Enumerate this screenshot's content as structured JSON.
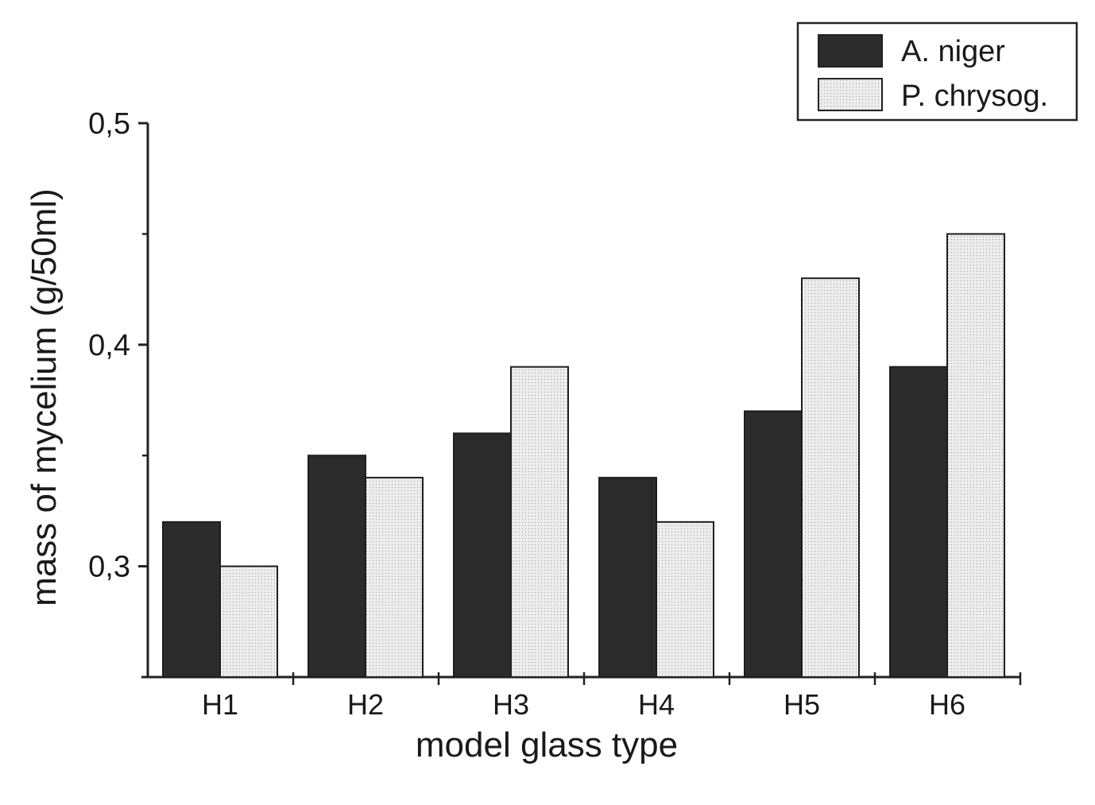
{
  "chart_data": {
    "type": "bar",
    "xlabel": "model glass type",
    "ylabel": "mass of mycelium (g/50ml)",
    "categories": [
      "H1",
      "H2",
      "H3",
      "H4",
      "H5",
      "H6"
    ],
    "series": [
      {
        "name": "A. niger",
        "values": [
          0.32,
          0.35,
          0.36,
          0.34,
          0.37,
          0.39
        ],
        "color": "#2b2b2b"
      },
      {
        "name": "P. chrysog.",
        "values": [
          0.3,
          0.34,
          0.39,
          0.32,
          0.43,
          0.45
        ],
        "color": "#e6e6e6"
      }
    ],
    "ylim": [
      0.25,
      0.5
    ],
    "yticks": [
      {
        "value": 0.3,
        "label": "0,3"
      },
      {
        "value": 0.4,
        "label": "0,4"
      },
      {
        "value": 0.5,
        "label": "0,5"
      }
    ],
    "yminor_ticks": [
      0.35,
      0.45
    ],
    "grid": false,
    "legend_position": "top-right"
  }
}
